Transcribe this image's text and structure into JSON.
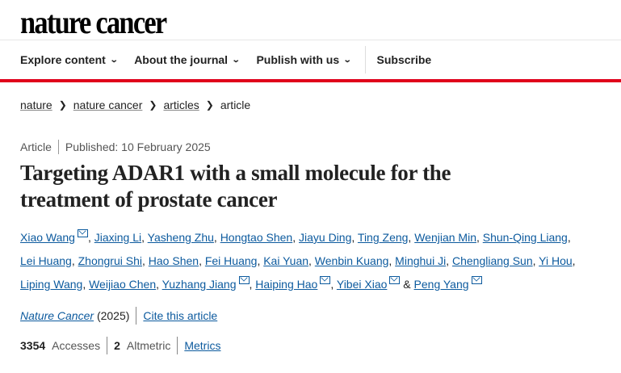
{
  "logo": "nature cancer",
  "nav": {
    "items": [
      "Explore content",
      "About the journal",
      "Publish with us"
    ],
    "subscribe": "Subscribe"
  },
  "breadcrumb": [
    "nature",
    "nature cancer",
    "articles",
    "article"
  ],
  "meta": {
    "type": "Article",
    "published": "Published: 10 February 2025"
  },
  "title": "Targeting ADAR1 with a small molecule for the treatment of prostate cancer",
  "authors": [
    {
      "name": "Xiao Wang",
      "mail": true
    },
    {
      "name": "Jiaxing Li"
    },
    {
      "name": "Yasheng Zhu"
    },
    {
      "name": "Hongtao Shen"
    },
    {
      "name": "Jiayu Ding"
    },
    {
      "name": "Ting Zeng"
    },
    {
      "name": "Wenjian Min"
    },
    {
      "name": "Shun-Qing Liang"
    },
    {
      "name": "Lei Huang"
    },
    {
      "name": "Zhongrui Shi"
    },
    {
      "name": "Hao Shen"
    },
    {
      "name": "Fei Huang"
    },
    {
      "name": "Kai Yuan"
    },
    {
      "name": "Wenbin Kuang"
    },
    {
      "name": "Minghui Ji"
    },
    {
      "name": "Chengliang Sun"
    },
    {
      "name": "Yi Hou"
    },
    {
      "name": "Liping Wang"
    },
    {
      "name": "Weijiao Chen"
    },
    {
      "name": "Yuzhang Jiang",
      "mail": true
    },
    {
      "name": "Haiping Hao",
      "mail": true
    },
    {
      "name": "Yibei Xiao",
      "mail": true
    },
    {
      "name": "Peng Yang",
      "mail": true
    }
  ],
  "journal": {
    "name": "Nature Cancer",
    "year": "(2025)",
    "cite": "Cite this article"
  },
  "metrics": {
    "accesses": "3354",
    "accesses_label": "Accesses",
    "altmetric": "2",
    "altmetric_label": "Altmetric",
    "link": "Metrics"
  }
}
